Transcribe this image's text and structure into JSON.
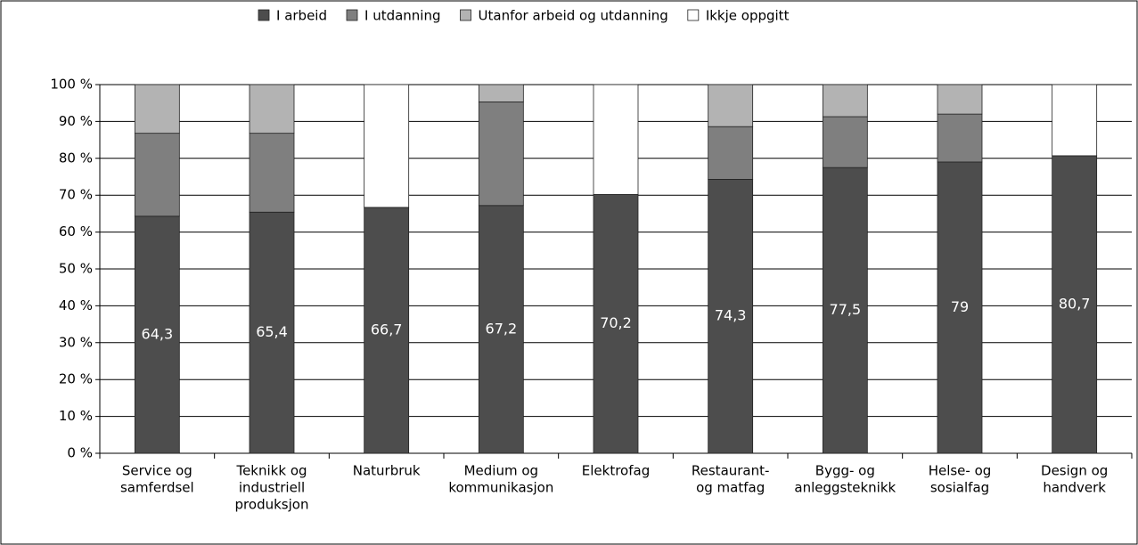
{
  "chart_data": {
    "type": "stacked_bar",
    "categories": [
      [
        "Service og",
        "samferdsel"
      ],
      [
        "Teknikk og",
        "industriell",
        "produksjon"
      ],
      [
        "Naturbruk"
      ],
      [
        "Medium og",
        "kommunikasjon"
      ],
      [
        "Elektrofag"
      ],
      [
        "Restaurant-",
        "og matfag"
      ],
      [
        "Bygg- og",
        "anleggsteknikk"
      ],
      [
        "Helse- og",
        "sosialfag"
      ],
      [
        "Design og",
        "handverk"
      ]
    ],
    "series": [
      {
        "name": "I arbeid",
        "color": "#4d4d4d",
        "values": [
          64.3,
          65.4,
          66.7,
          67.2,
          70.2,
          74.3,
          77.5,
          79,
          80.7
        ],
        "value_labels": [
          "64,3",
          "65,4",
          "66,7",
          "67,2",
          "70,2",
          "74,3",
          "77,5",
          "79",
          "80,7"
        ]
      },
      {
        "name": "I utdanning",
        "color": "#7f7f7f",
        "values": [
          22.5,
          21.4,
          0,
          28.1,
          0,
          14.3,
          13.8,
          13,
          0
        ]
      },
      {
        "name": "Utanfor arbeid og utdanning",
        "color": "#b3b3b3",
        "values": [
          13.2,
          13.2,
          0,
          4.7,
          0,
          11.4,
          8.7,
          8,
          0
        ]
      },
      {
        "name": "Ikkje oppgitt",
        "color": "#ffffff",
        "values": [
          0,
          0,
          33.3,
          0,
          29.8,
          0,
          0,
          0,
          19.3
        ]
      }
    ],
    "ylim": [
      0,
      100
    ],
    "yticks": [
      {
        "value": 0,
        "label": "0 %"
      },
      {
        "value": 10,
        "label": "10 %"
      },
      {
        "value": 20,
        "label": "20 %"
      },
      {
        "value": 30,
        "label": "30 %"
      },
      {
        "value": 40,
        "label": "40 %"
      },
      {
        "value": 50,
        "label": "50 %"
      },
      {
        "value": 60,
        "label": "60 %"
      },
      {
        "value": 70,
        "label": "70 %"
      },
      {
        "value": 80,
        "label": "80 %"
      },
      {
        "value": 90,
        "label": "90 %"
      },
      {
        "value": 100,
        "label": "100 %"
      }
    ],
    "grid": true,
    "legend": "top"
  }
}
